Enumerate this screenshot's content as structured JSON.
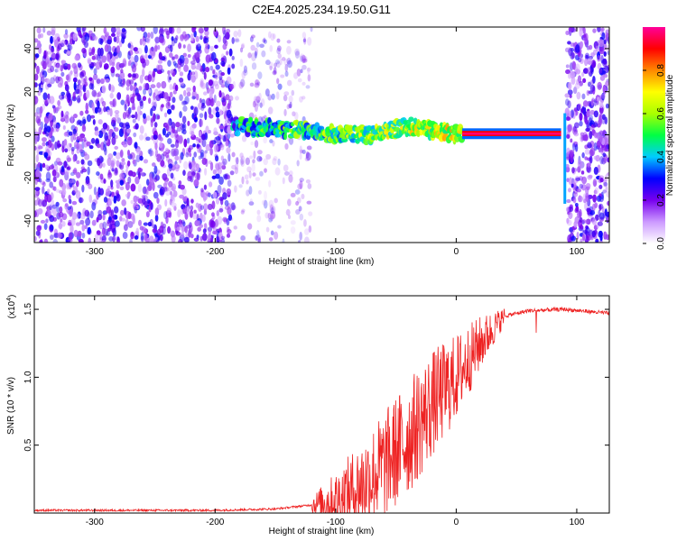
{
  "title": "C2E4.2025.234.19.50.G11",
  "chart_data": [
    {
      "type": "heatmap",
      "name": "spectrogram",
      "xlabel": "Height of straight line (km)",
      "ylabel": "Frequency (Hz)",
      "xlim": [
        -350,
        127
      ],
      "ylim": [
        -50,
        50
      ],
      "x_ticks": [
        -300,
        -200,
        -100,
        0,
        100
      ],
      "x_tick_labels": [
        "-300",
        "-200",
        "-100",
        "0",
        "100"
      ],
      "y_ticks": [
        40,
        20,
        0,
        -20,
        -40
      ],
      "y_tick_labels": [
        "40",
        "20",
        "0",
        "-20",
        "-40"
      ],
      "colorbar": {
        "label": "Normalized spectral amplitude",
        "range": [
          0,
          1
        ],
        "ticks": [
          0.0,
          0.2,
          0.4,
          0.6,
          0.8
        ],
        "tick_labels": [
          "0.0",
          "0.2",
          "0.4",
          "0.6",
          "0.8"
        ],
        "colors": [
          "#ffffff",
          "#cc99ff",
          "#7700ee",
          "#0000ff",
          "#00ccff",
          "#00ff44",
          "#aaff00",
          "#ffff00",
          "#ff8800",
          "#ff0000",
          "#ff0099"
        ]
      },
      "features": {
        "noise_left_range_km": [
          -350,
          -185
        ],
        "sparse_range_km": [
          -185,
          -120
        ],
        "signal_track": [
          {
            "x": -185,
            "f": 4
          },
          {
            "x": -150,
            "f": 3
          },
          {
            "x": -120,
            "f": 2
          },
          {
            "x": -100,
            "f": 0
          },
          {
            "x": -70,
            "f": 0
          },
          {
            "x": -40,
            "f": 4
          },
          {
            "x": -20,
            "f": 2
          },
          {
            "x": 0,
            "f": 0.5
          },
          {
            "x": 88,
            "f": 0.5
          }
        ],
        "strong_line_range_km": [
          5,
          87
        ],
        "noise_right_range_km": [
          92,
          127
        ]
      }
    },
    {
      "type": "line",
      "name": "snr",
      "xlabel": "Height of straight line (km)",
      "ylabel": "SNR (10 * v/v)",
      "y_multiplier_label": "(x10",
      "y_multiplier_exp": "4",
      "y_multiplier_close": ")",
      "xlim": [
        -350,
        127
      ],
      "ylim": [
        0,
        1.6
      ],
      "x_ticks": [
        -300,
        -200,
        -100,
        0,
        100
      ],
      "x_tick_labels": [
        "-300",
        "-200",
        "-100",
        "0",
        "100"
      ],
      "y_ticks": [
        0.5,
        1.0,
        1.5
      ],
      "y_tick_labels": [
        "0.5",
        "1.0",
        "1.5"
      ],
      "line_color": "#ee2222",
      "trend": [
        {
          "x": -350,
          "y": 0.02
        },
        {
          "x": -200,
          "y": 0.02
        },
        {
          "x": -150,
          "y": 0.03
        },
        {
          "x": -120,
          "y": 0.06
        },
        {
          "x": -100,
          "y": 0.1
        },
        {
          "x": -80,
          "y": 0.2
        },
        {
          "x": -60,
          "y": 0.35
        },
        {
          "x": -40,
          "y": 0.55
        },
        {
          "x": -20,
          "y": 0.8
        },
        {
          "x": 0,
          "y": 1.0
        },
        {
          "x": 20,
          "y": 1.25
        },
        {
          "x": 40,
          "y": 1.45
        },
        {
          "x": 60,
          "y": 1.49
        },
        {
          "x": 90,
          "y": 1.5
        },
        {
          "x": 127,
          "y": 1.47
        }
      ]
    }
  ]
}
